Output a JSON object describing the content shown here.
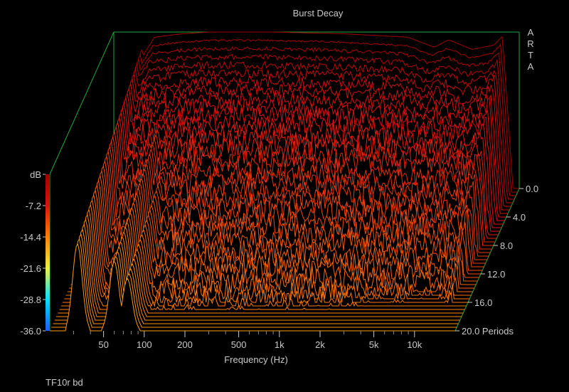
{
  "chart_data": {
    "type": "waterfall",
    "title": "Burst Decay",
    "brand": "ARTA",
    "xlabel": "Frequency (Hz)",
    "x_scale": "log",
    "xlim": [
      20,
      20000
    ],
    "x_ticks": [
      {
        "v": 50,
        "label": "50"
      },
      {
        "v": 100,
        "label": "100"
      },
      {
        "v": 200,
        "label": "200"
      },
      {
        "v": 500,
        "label": "500"
      },
      {
        "v": 1000,
        "label": "1k"
      },
      {
        "v": 2000,
        "label": "2k"
      },
      {
        "v": 5000,
        "label": "5k"
      },
      {
        "v": 10000,
        "label": "10k"
      }
    ],
    "x_minor": [
      30,
      40,
      60,
      70,
      80,
      90,
      300,
      400,
      600,
      700,
      800,
      900,
      3000,
      4000,
      6000,
      7000,
      8000,
      9000
    ],
    "zlabel": "dB",
    "zlim": [
      -36,
      0
    ],
    "z_ticks": [
      {
        "v": 0,
        "label": "dB"
      },
      {
        "v": -7.2,
        "label": "-7.2"
      },
      {
        "v": -14.4,
        "label": "-14.4"
      },
      {
        "v": -21.6,
        "label": "-21.6"
      },
      {
        "v": -28.8,
        "label": "-28.8"
      },
      {
        "v": -36,
        "label": "-36.0"
      }
    ],
    "ylabel": "Periods",
    "ylim": [
      0,
      20
    ],
    "y_ticks": [
      {
        "v": 0,
        "label": "0.0"
      },
      {
        "v": 4,
        "label": "4.0"
      },
      {
        "v": 8,
        "label": "8.0"
      },
      {
        "v": 12,
        "label": "12.0"
      },
      {
        "v": 16,
        "label": "16.0"
      },
      {
        "v": 20,
        "label": "20.0 Periods"
      }
    ],
    "slice_periods_step": 0.5,
    "colormap": [
      "#1e5aff",
      "#00e0ff",
      "#f0f040",
      "#ff8000",
      "#e01010",
      "#a00000"
    ],
    "response_db": [
      {
        "f": 20,
        "db": -36
      },
      {
        "f": 28,
        "db": -22
      },
      {
        "f": 32,
        "db": -6
      },
      {
        "f": 40,
        "db": -1.2
      },
      {
        "f": 60,
        "db": -0.5
      },
      {
        "f": 100,
        "db": 0
      },
      {
        "f": 300,
        "db": 0
      },
      {
        "f": 1000,
        "db": -0.4
      },
      {
        "f": 3000,
        "db": -1.2
      },
      {
        "f": 4700,
        "db": -3.5
      },
      {
        "f": 6000,
        "db": -1.8
      },
      {
        "f": 9000,
        "db": -4
      },
      {
        "f": 13000,
        "db": -3
      },
      {
        "f": 15000,
        "db": -1
      },
      {
        "f": 18000,
        "db": -36
      }
    ],
    "decay_rate_db_per_period": 2.2,
    "low_freq_resonances_hz": [
      32,
      60,
      75
    ],
    "footnote": "TF10r bd"
  }
}
